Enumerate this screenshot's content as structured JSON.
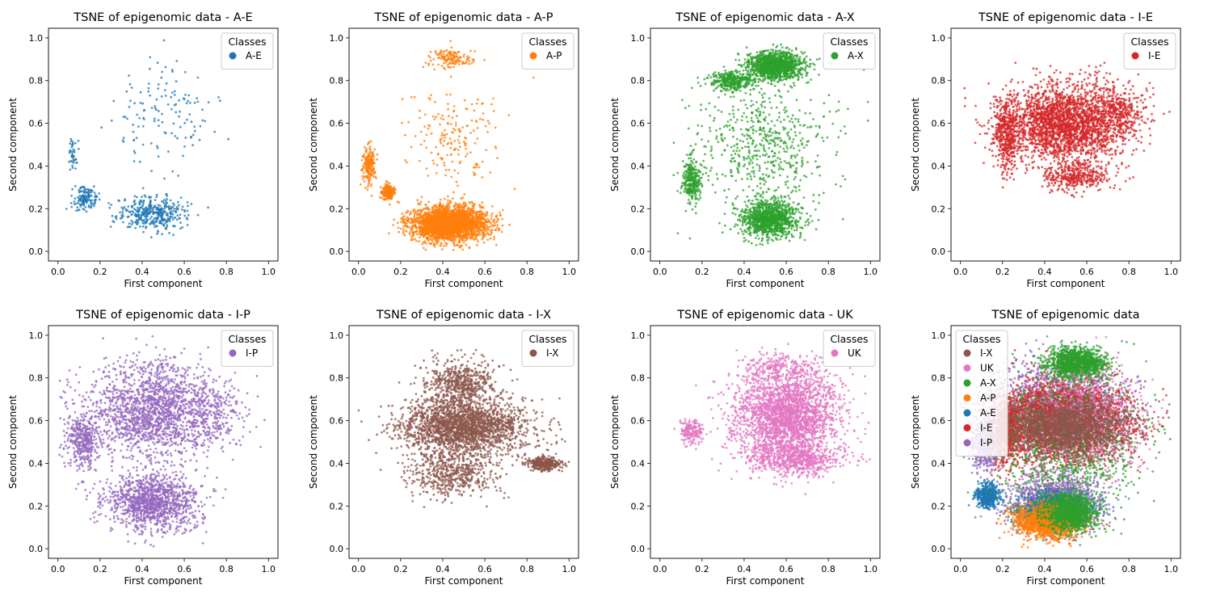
{
  "chart_data": [
    {
      "type": "scatter",
      "title": "TSNE of epigenomic data - A-E",
      "xlabel": "First component",
      "ylabel": "Second component",
      "xlim": [
        0.0,
        1.0
      ],
      "ylim": [
        0.0,
        1.0
      ],
      "x_ticks": [
        "0.0",
        "0.2",
        "0.4",
        "0.6",
        "0.8",
        "1.0"
      ],
      "y_ticks": [
        "0.0",
        "0.2",
        "0.4",
        "0.6",
        "0.8",
        "1.0"
      ],
      "legend": {
        "title": "Classes",
        "placement": "upper right",
        "entries": [
          {
            "label": "A-E",
            "color": "#1f77b4"
          }
        ]
      },
      "series": [
        {
          "name": "A-E",
          "color": "#1f77b4",
          "density": "sparse",
          "clusters": [
            {
              "cx": 0.45,
              "cy": 0.18,
              "rx": 0.15,
              "ry": 0.07,
              "weight": 0.55
            },
            {
              "cx": 0.13,
              "cy": 0.25,
              "rx": 0.05,
              "ry": 0.05,
              "weight": 0.2
            },
            {
              "cx": 0.07,
              "cy": 0.45,
              "rx": 0.02,
              "ry": 0.07,
              "weight": 0.06
            },
            {
              "cx": 0.5,
              "cy": 0.65,
              "rx": 0.23,
              "ry": 0.22,
              "weight": 0.19
            }
          ]
        }
      ]
    },
    {
      "type": "scatter",
      "title": "TSNE of epigenomic data - A-P",
      "xlabel": "First component",
      "ylabel": "Second component",
      "xlim": [
        0.0,
        1.0
      ],
      "ylim": [
        0.0,
        1.0
      ],
      "x_ticks": [
        "0.0",
        "0.2",
        "0.4",
        "0.6",
        "0.8",
        "1.0"
      ],
      "y_ticks": [
        "0.0",
        "0.2",
        "0.4",
        "0.6",
        "0.8",
        "1.0"
      ],
      "legend": {
        "title": "Classes",
        "placement": "upper right",
        "entries": [
          {
            "label": "A-P",
            "color": "#ff7f0e"
          }
        ]
      },
      "series": [
        {
          "name": "A-P",
          "color": "#ff7f0e",
          "density": "dense",
          "clusters": [
            {
              "cx": 0.43,
              "cy": 0.13,
              "rx": 0.16,
              "ry": 0.07,
              "weight": 0.8
            },
            {
              "cx": 0.14,
              "cy": 0.28,
              "rx": 0.03,
              "ry": 0.03,
              "weight": 0.06
            },
            {
              "cx": 0.05,
              "cy": 0.4,
              "rx": 0.03,
              "ry": 0.08,
              "weight": 0.05
            },
            {
              "cx": 0.44,
              "cy": 0.9,
              "rx": 0.1,
              "ry": 0.04,
              "weight": 0.04
            },
            {
              "cx": 0.45,
              "cy": 0.55,
              "rx": 0.2,
              "ry": 0.2,
              "weight": 0.05
            }
          ]
        }
      ]
    },
    {
      "type": "scatter",
      "title": "TSNE of epigenomic data - A-X",
      "xlabel": "First component",
      "ylabel": "Second component",
      "xlim": [
        0.0,
        1.0
      ],
      "ylim": [
        0.0,
        1.0
      ],
      "x_ticks": [
        "0.0",
        "0.2",
        "0.4",
        "0.6",
        "0.8",
        "1.0"
      ],
      "y_ticks": [
        "0.0",
        "0.2",
        "0.4",
        "0.6",
        "0.8",
        "1.0"
      ],
      "legend": {
        "title": "Classes",
        "placement": "upper right",
        "entries": [
          {
            "label": "A-X",
            "color": "#2ca02c"
          }
        ]
      },
      "series": [
        {
          "name": "A-X",
          "color": "#2ca02c",
          "density": "dense",
          "clusters": [
            {
              "cx": 0.55,
              "cy": 0.87,
              "rx": 0.12,
              "ry": 0.06,
              "weight": 0.35
            },
            {
              "cx": 0.35,
              "cy": 0.8,
              "rx": 0.1,
              "ry": 0.04,
              "weight": 0.1
            },
            {
              "cx": 0.52,
              "cy": 0.15,
              "rx": 0.12,
              "ry": 0.08,
              "weight": 0.3
            },
            {
              "cx": 0.15,
              "cy": 0.33,
              "rx": 0.04,
              "ry": 0.1,
              "weight": 0.08
            },
            {
              "cx": 0.5,
              "cy": 0.5,
              "rx": 0.3,
              "ry": 0.3,
              "weight": 0.17
            }
          ]
        }
      ]
    },
    {
      "type": "scatter",
      "title": "TSNE of epigenomic data - I-E",
      "xlabel": "First component",
      "ylabel": "Second component",
      "xlim": [
        0.0,
        1.0
      ],
      "ylim": [
        0.0,
        1.0
      ],
      "x_ticks": [
        "0.0",
        "0.2",
        "0.4",
        "0.6",
        "0.8",
        "1.0"
      ],
      "y_ticks": [
        "0.0",
        "0.2",
        "0.4",
        "0.6",
        "0.8",
        "1.0"
      ],
      "legend": {
        "title": "Classes",
        "placement": "upper right",
        "entries": [
          {
            "label": "I-E",
            "color": "#d62728"
          }
        ]
      },
      "series": [
        {
          "name": "I-E",
          "color": "#d62728",
          "density": "dense",
          "clusters": [
            {
              "cx": 0.5,
              "cy": 0.6,
              "rx": 0.27,
              "ry": 0.17,
              "weight": 0.7
            },
            {
              "cx": 0.22,
              "cy": 0.55,
              "rx": 0.06,
              "ry": 0.15,
              "weight": 0.12
            },
            {
              "cx": 0.55,
              "cy": 0.35,
              "rx": 0.15,
              "ry": 0.06,
              "weight": 0.1
            },
            {
              "cx": 0.75,
              "cy": 0.65,
              "rx": 0.1,
              "ry": 0.1,
              "weight": 0.08
            }
          ]
        }
      ]
    },
    {
      "type": "scatter",
      "title": "TSNE of epigenomic data - I-P",
      "xlabel": "First component",
      "ylabel": "Second component",
      "xlim": [
        0.0,
        1.0
      ],
      "ylim": [
        0.0,
        1.0
      ],
      "x_ticks": [
        "0.0",
        "0.2",
        "0.4",
        "0.6",
        "0.8",
        "1.0"
      ],
      "y_ticks": [
        "0.0",
        "0.2",
        "0.4",
        "0.6",
        "0.8",
        "1.0"
      ],
      "legend": {
        "title": "Classes",
        "placement": "upper right",
        "entries": [
          {
            "label": "I-P",
            "color": "#9467bd"
          }
        ]
      },
      "series": [
        {
          "name": "I-P",
          "color": "#9467bd",
          "density": "dense",
          "clusters": [
            {
              "cx": 0.45,
              "cy": 0.65,
              "rx": 0.3,
              "ry": 0.2,
              "weight": 0.5
            },
            {
              "cx": 0.45,
              "cy": 0.22,
              "rx": 0.2,
              "ry": 0.12,
              "weight": 0.35
            },
            {
              "cx": 0.12,
              "cy": 0.5,
              "rx": 0.07,
              "ry": 0.12,
              "weight": 0.1
            },
            {
              "cx": 0.75,
              "cy": 0.6,
              "rx": 0.12,
              "ry": 0.15,
              "weight": 0.05
            }
          ]
        }
      ]
    },
    {
      "type": "scatter",
      "title": "TSNE of epigenomic data - I-X",
      "xlabel": "First component",
      "ylabel": "Second component",
      "xlim": [
        0.0,
        1.0
      ],
      "ylim": [
        0.0,
        1.0
      ],
      "x_ticks": [
        "0.0",
        "0.2",
        "0.4",
        "0.6",
        "0.8",
        "1.0"
      ],
      "y_ticks": [
        "0.0",
        "0.2",
        "0.4",
        "0.6",
        "0.8",
        "1.0"
      ],
      "legend": {
        "title": "Classes",
        "placement": "upper right",
        "entries": [
          {
            "label": "I-X",
            "color": "#8c564b"
          }
        ]
      },
      "series": [
        {
          "name": "I-X",
          "color": "#8c564b",
          "density": "dense",
          "clusters": [
            {
              "cx": 0.5,
              "cy": 0.57,
              "rx": 0.28,
              "ry": 0.12,
              "weight": 0.6
            },
            {
              "cx": 0.48,
              "cy": 0.78,
              "rx": 0.15,
              "ry": 0.1,
              "weight": 0.15
            },
            {
              "cx": 0.45,
              "cy": 0.35,
              "rx": 0.2,
              "ry": 0.1,
              "weight": 0.15
            },
            {
              "cx": 0.88,
              "cy": 0.4,
              "rx": 0.07,
              "ry": 0.03,
              "weight": 0.1
            }
          ]
        }
      ]
    },
    {
      "type": "scatter",
      "title": "TSNE of epigenomic data - UK",
      "xlabel": "First component",
      "ylabel": "Second component",
      "xlim": [
        0.0,
        1.0
      ],
      "ylim": [
        0.0,
        1.0
      ],
      "x_ticks": [
        "0.0",
        "0.2",
        "0.4",
        "0.6",
        "0.8",
        "1.0"
      ],
      "y_ticks": [
        "0.0",
        "0.2",
        "0.4",
        "0.6",
        "0.8",
        "1.0"
      ],
      "legend": {
        "title": "Classes",
        "placement": "upper right",
        "entries": [
          {
            "label": "UK",
            "color": "#e377c2"
          }
        ]
      },
      "series": [
        {
          "name": "UK",
          "color": "#e377c2",
          "density": "dense",
          "clusters": [
            {
              "cx": 0.6,
              "cy": 0.62,
              "rx": 0.23,
              "ry": 0.2,
              "weight": 0.75
            },
            {
              "cx": 0.65,
              "cy": 0.42,
              "rx": 0.2,
              "ry": 0.07,
              "weight": 0.15
            },
            {
              "cx": 0.15,
              "cy": 0.55,
              "rx": 0.05,
              "ry": 0.05,
              "weight": 0.05
            },
            {
              "cx": 0.55,
              "cy": 0.85,
              "rx": 0.15,
              "ry": 0.06,
              "weight": 0.05
            }
          ]
        }
      ]
    },
    {
      "type": "scatter",
      "title": "TSNE of epigenomic data",
      "xlabel": "First component",
      "ylabel": "Second component",
      "xlim": [
        0.0,
        1.0
      ],
      "ylim": [
        0.0,
        1.0
      ],
      "x_ticks": [
        "0.0",
        "0.2",
        "0.4",
        "0.6",
        "0.8",
        "1.0"
      ],
      "y_ticks": [
        "0.0",
        "0.2",
        "0.4",
        "0.6",
        "0.8",
        "1.0"
      ],
      "legend": {
        "title": "Classes",
        "placement": "upper left",
        "entries": [
          {
            "label": "I-X",
            "color": "#8c564b"
          },
          {
            "label": "UK",
            "color": "#e377c2"
          },
          {
            "label": "A-X",
            "color": "#2ca02c"
          },
          {
            "label": "A-P",
            "color": "#ff7f0e"
          },
          {
            "label": "A-E",
            "color": "#1f77b4"
          },
          {
            "label": "I-E",
            "color": "#d62728"
          },
          {
            "label": "I-P",
            "color": "#9467bd"
          }
        ]
      },
      "series": [
        {
          "name": "I-P",
          "color": "#9467bd",
          "density": "dense",
          "clusters": [
            {
              "cx": 0.45,
              "cy": 0.65,
              "rx": 0.3,
              "ry": 0.2,
              "weight": 0.5
            },
            {
              "cx": 0.45,
              "cy": 0.22,
              "rx": 0.2,
              "ry": 0.12,
              "weight": 0.35
            },
            {
              "cx": 0.12,
              "cy": 0.5,
              "rx": 0.07,
              "ry": 0.12,
              "weight": 0.15
            }
          ]
        },
        {
          "name": "I-E",
          "color": "#d62728",
          "density": "dense",
          "clusters": [
            {
              "cx": 0.5,
              "cy": 0.6,
              "rx": 0.27,
              "ry": 0.17,
              "weight": 0.8
            },
            {
              "cx": 0.22,
              "cy": 0.55,
              "rx": 0.06,
              "ry": 0.15,
              "weight": 0.2
            }
          ]
        },
        {
          "name": "A-E",
          "color": "#1f77b4",
          "density": "medium",
          "clusters": [
            {
              "cx": 0.45,
              "cy": 0.18,
              "rx": 0.15,
              "ry": 0.07,
              "weight": 0.7
            },
            {
              "cx": 0.13,
              "cy": 0.25,
              "rx": 0.05,
              "ry": 0.05,
              "weight": 0.3
            }
          ]
        },
        {
          "name": "A-P",
          "color": "#ff7f0e",
          "density": "medium",
          "clusters": [
            {
              "cx": 0.42,
              "cy": 0.13,
              "rx": 0.14,
              "ry": 0.07,
              "weight": 1.0
            }
          ]
        },
        {
          "name": "A-X",
          "color": "#2ca02c",
          "density": "dense",
          "clusters": [
            {
              "cx": 0.55,
              "cy": 0.87,
              "rx": 0.12,
              "ry": 0.06,
              "weight": 0.4
            },
            {
              "cx": 0.52,
              "cy": 0.17,
              "rx": 0.12,
              "ry": 0.08,
              "weight": 0.3
            },
            {
              "cx": 0.5,
              "cy": 0.5,
              "rx": 0.3,
              "ry": 0.3,
              "weight": 0.3
            }
          ]
        },
        {
          "name": "UK",
          "color": "#e377c2",
          "density": "sparse",
          "clusters": [
            {
              "cx": 0.6,
              "cy": 0.62,
              "rx": 0.23,
              "ry": 0.2,
              "weight": 1.0
            }
          ]
        },
        {
          "name": "I-X",
          "color": "#8c564b",
          "density": "medium",
          "clusters": [
            {
              "cx": 0.5,
              "cy": 0.57,
              "rx": 0.28,
              "ry": 0.12,
              "weight": 1.0
            }
          ]
        }
      ]
    }
  ]
}
